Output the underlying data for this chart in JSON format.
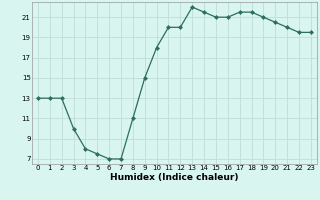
{
  "x": [
    0,
    1,
    2,
    3,
    4,
    5,
    6,
    7,
    8,
    9,
    10,
    11,
    12,
    13,
    14,
    15,
    16,
    17,
    18,
    19,
    20,
    21,
    22,
    23
  ],
  "y": [
    13,
    13,
    13,
    10,
    8,
    7.5,
    7,
    7,
    11,
    15,
    18,
    20,
    20,
    22,
    21.5,
    21,
    21,
    21.5,
    21.5,
    21,
    20.5,
    20,
    19.5,
    19.5
  ],
  "line_color": "#2d6e5e",
  "marker_color": "#2d6e5e",
  "bg_color": "#d8f5f0",
  "grid_color": "#c0ddd8",
  "xlabel": "Humidex (Indice chaleur)",
  "yticks": [
    7,
    9,
    11,
    13,
    15,
    17,
    19,
    21
  ],
  "xticks": [
    0,
    1,
    2,
    3,
    4,
    5,
    6,
    7,
    8,
    9,
    10,
    11,
    12,
    13,
    14,
    15,
    16,
    17,
    18,
    19,
    20,
    21,
    22,
    23
  ],
  "ylim": [
    6.5,
    22.5
  ],
  "xlim": [
    -0.5,
    23.5
  ],
  "tick_fontsize": 5,
  "xlabel_fontsize": 6.5,
  "linewidth": 0.9,
  "markersize": 2.0
}
